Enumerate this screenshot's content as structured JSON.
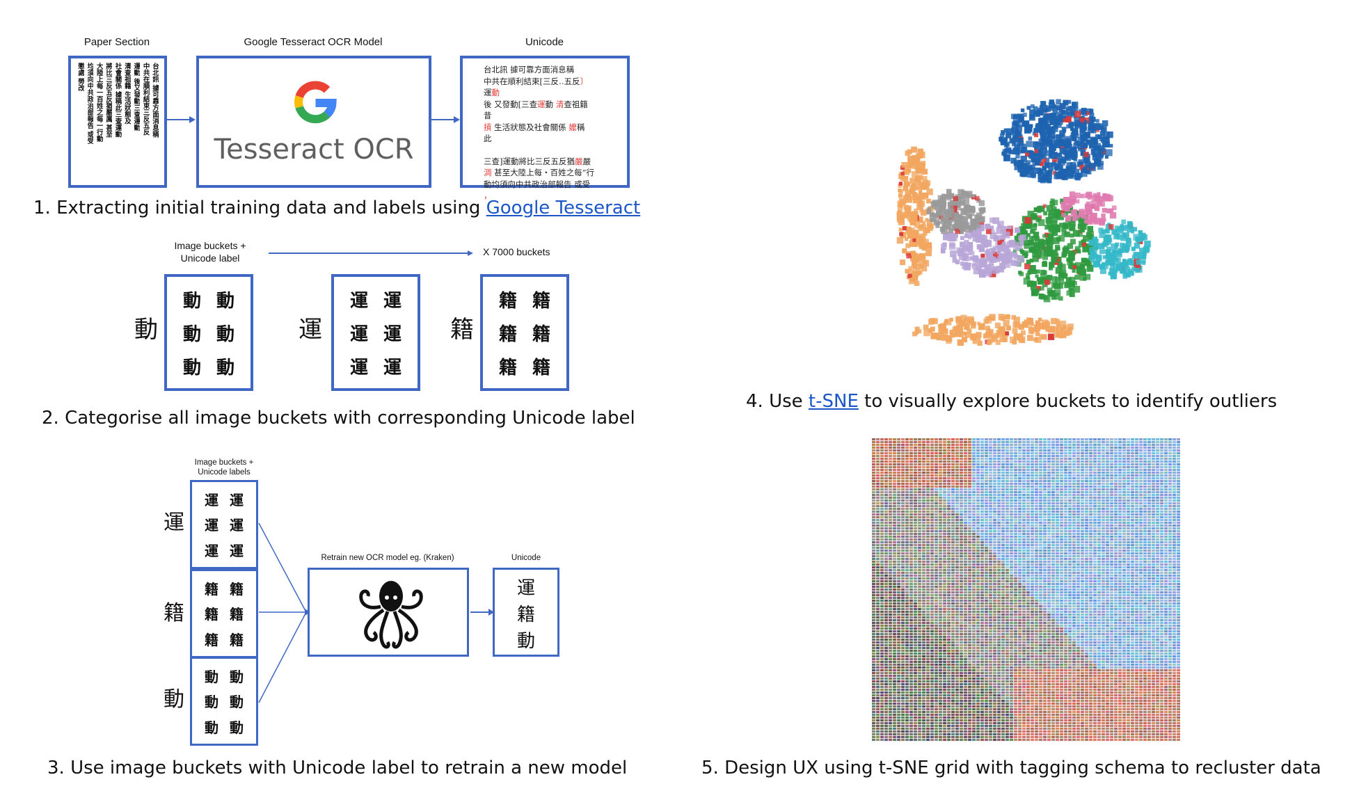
{
  "step1": {
    "header_paper": "Paper Section",
    "header_model": "Google Tesseract OCR Model",
    "header_unicode": "Unicode",
    "tesseract_logo_text": "Tesseract OCR",
    "paper_columns": [
      "台北訊 據可靠方面消息稱",
      "中共在順利結束三反五反",
      "運動 後又發動三查運動",
      "清查祖籍 生活狀態及",
      "社會關係 據稱此三查運動",
      "將比三反五反猶嚴厲 甚至",
      "大陸上每一百姓之每一行動",
      "均須向中共政治部報告 或受",
      "懲處 勞改"
    ],
    "ocr_lines": [
      {
        "parts": [
          {
            "t": "台北訊 據可靠方面消息稱",
            "red": false
          }
        ]
      },
      {
        "parts": [
          {
            "t": "中共在順利結束[三反‥五反",
            "red": false
          },
          {
            "t": "〕",
            "red": true
          }
        ]
      },
      {
        "parts": [
          {
            "t": "運",
            "red": false
          },
          {
            "t": "動",
            "red": true
          }
        ]
      },
      {
        "parts": [
          {
            "t": "後 又發動[三查",
            "red": false
          },
          {
            "t": "運",
            "red": true
          },
          {
            "t": "動 ",
            "red": false
          },
          {
            "t": "清",
            "red": true
          },
          {
            "t": "查祖籍",
            "red": false
          }
        ]
      },
      {
        "parts": [
          {
            "t": "昔",
            "red": false
          }
        ]
      },
      {
        "parts": [
          {
            "t": "摃",
            "red": true
          },
          {
            "t": " 生活狀態及社會關係 ",
            "red": false
          },
          {
            "t": "嬤",
            "red": true
          },
          {
            "t": "稱",
            "red": false
          }
        ]
      },
      {
        "parts": [
          {
            "t": "此",
            "red": false
          }
        ]
      },
      {
        "parts": [
          {
            "t": "",
            "red": false
          }
        ]
      },
      {
        "parts": [
          {
            "t": "三查]運動將比三反五反猶",
            "red": false
          },
          {
            "t": "嚴",
            "red": true
          },
          {
            "t": "嚴",
            "red": false
          }
        ]
      },
      {
        "parts": [
          {
            "t": "淍",
            "red": true
          },
          {
            "t": " 甚至大陸上每‧百姓之每“行",
            "red": false
          }
        ]
      },
      {
        "parts": [
          {
            "t": "動均須向中共政治部報告 或受",
            "red": false
          }
        ]
      },
      {
        "parts": [
          {
            "t": "，",
            "red": true
          }
        ]
      }
    ],
    "caption_prefix": "1. Extracting initial training data and labels using ",
    "caption_link": "Google Tesseract"
  },
  "step2": {
    "label_left": "Image buckets +\nUnicode label",
    "label_right": "X 7000 buckets",
    "buckets": [
      {
        "label": "動",
        "chars": [
          "動",
          "動",
          "動",
          "動",
          "動",
          "動"
        ]
      },
      {
        "label": "運",
        "chars": [
          "運",
          "運",
          "運",
          "運",
          "運",
          "運"
        ]
      },
      {
        "label": "籍",
        "chars": [
          "籍",
          "籍",
          "籍",
          "籍",
          "籍",
          "籍"
        ]
      }
    ],
    "caption": "2. Categorise all image buckets with corresponding Unicode label"
  },
  "step3": {
    "label_buckets": "Image buckets +\nUnicode labels",
    "label_retrain": "Retrain new OCR model eg. (Kraken)",
    "label_unicode": "Unicode",
    "buckets": [
      {
        "label": "運",
        "chars": [
          "運",
          "運",
          "運",
          "運",
          "運",
          "運"
        ]
      },
      {
        "label": "籍",
        "chars": [
          "籍",
          "籍",
          "籍",
          "籍",
          "籍",
          "籍"
        ]
      },
      {
        "label": "動",
        "chars": [
          "動",
          "動",
          "動",
          "動",
          "動",
          "動"
        ]
      }
    ],
    "output_chars": [
      "運",
      "籍",
      "動"
    ],
    "caption": "3. Use image buckets with Unicode label to retrain a new model"
  },
  "step4": {
    "caption_prefix": "4. Use ",
    "caption_link": "t-SNE",
    "caption_suffix": " to visually explore buckets to identify outliers",
    "cluster_colors": {
      "blue": "#1d63b0",
      "green": "#2f9a3f",
      "cyan": "#35b9c9",
      "orange": "#f2a65f",
      "purple": "#b8a6d8",
      "grey": "#9a9a9a",
      "pink": "#e07bb0",
      "red": "#d93a3a"
    }
  },
  "step5": {
    "caption": "5. Design UX using t-SNE grid with tagging schema to recluster data"
  },
  "colors": {
    "box_border": "#3f67c3",
    "link": "#1a56c8",
    "arrow": "#3f67c3"
  }
}
